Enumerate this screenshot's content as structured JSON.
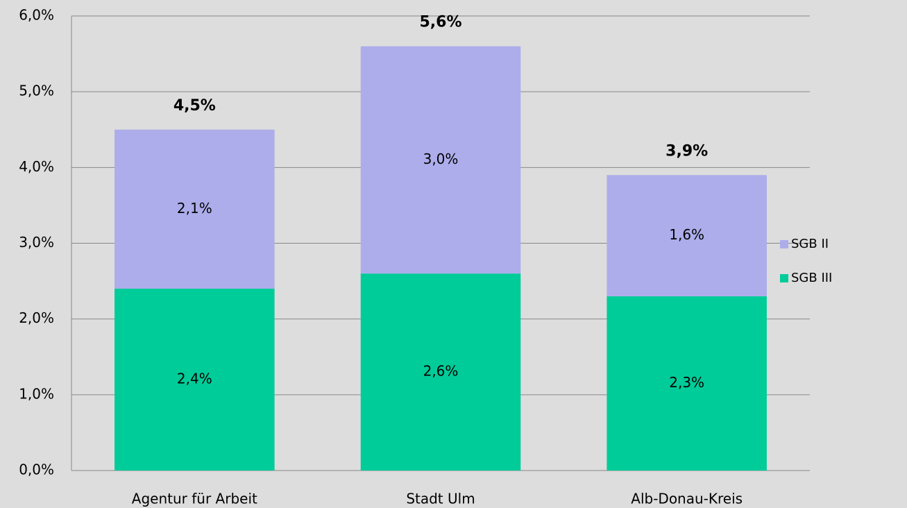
{
  "chart_data": {
    "type": "stacked_bar",
    "categories": [
      "Agentur für Arbeit",
      "Stadt Ulm",
      "Alb-Donau-Kreis"
    ],
    "series": [
      {
        "name": "SGB II",
        "color": "#adadeb",
        "values": [
          2.1,
          3.0,
          1.6
        ],
        "value_labels": [
          "2,1%",
          "3,0%",
          "1,6%"
        ]
      },
      {
        "name": "SGB III",
        "color": "#00cc99",
        "values": [
          2.4,
          2.6,
          2.3
        ],
        "value_labels": [
          "2,4%",
          "2,6%",
          "2,3%"
        ]
      }
    ],
    "totals": {
      "values": [
        4.5,
        5.6,
        3.9
      ],
      "value_labels": [
        "4,5%",
        "5,6%",
        "3,9%"
      ]
    },
    "ylim": [
      0,
      6
    ],
    "yticks": [
      {
        "value": 0,
        "label": "0,0%"
      },
      {
        "value": 1,
        "label": "1,0%"
      },
      {
        "value": 2,
        "label": "2,0%"
      },
      {
        "value": 3,
        "label": "3,0%"
      },
      {
        "value": 4,
        "label": "4,0%"
      },
      {
        "value": 5,
        "label": "5,0%"
      },
      {
        "value": 6,
        "label": "6,0%"
      }
    ],
    "grid": true,
    "legend": "right"
  }
}
